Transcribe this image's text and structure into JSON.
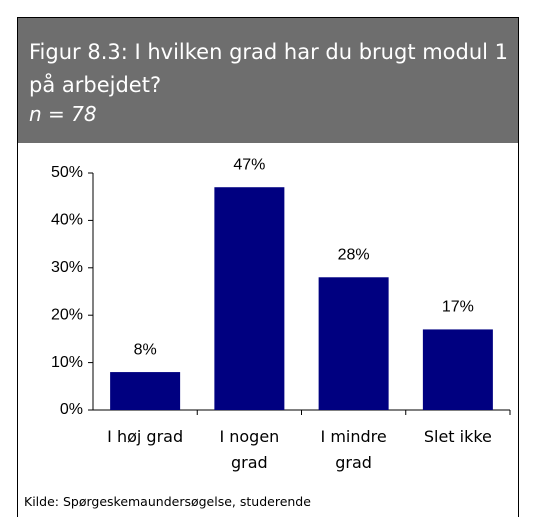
{
  "chart_data": {
    "type": "bar",
    "title": "Figur 8.3: I hvilken grad har du brugt modul 1 på arbejdet?",
    "subtitle": "n = 78",
    "categories": [
      "I høj grad",
      "I nogen grad",
      "I mindre grad",
      "Slet ikke"
    ],
    "values": [
      8,
      47,
      28,
      17
    ],
    "value_labels": [
      "8%",
      "47%",
      "28%",
      "17%"
    ],
    "color": "#000080",
    "ylim": [
      0,
      50
    ],
    "yticks": [
      {
        "value": 0,
        "label": "0%"
      },
      {
        "value": 10,
        "label": "10%"
      },
      {
        "value": 20,
        "label": "20%"
      },
      {
        "value": 30,
        "label": "30%"
      },
      {
        "value": 40,
        "label": "40%"
      },
      {
        "value": 50,
        "label": "50%"
      }
    ],
    "source": "Kilde: Spørgeskemaundersøgelse, studerende"
  }
}
